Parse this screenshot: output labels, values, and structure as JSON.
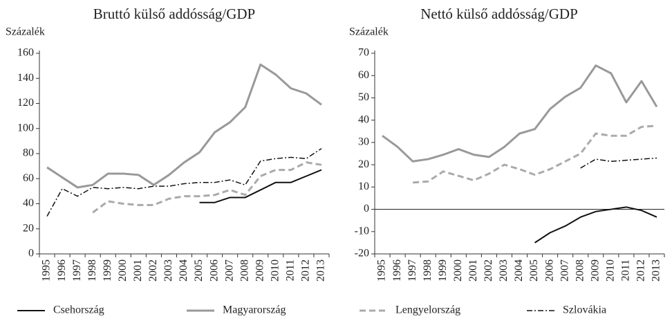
{
  "chart_data": [
    {
      "type": "line",
      "title": "Bruttó külső addósság/GDP",
      "y_label": "Százalék",
      "categories": [
        "1995",
        "1996",
        "1997",
        "1998",
        "1999",
        "2000",
        "2001",
        "2002",
        "2003",
        "2004",
        "2005",
        "2006",
        "2007",
        "2008",
        "2009",
        "2010",
        "2011",
        "2012",
        "2013"
      ],
      "ylim": [
        0,
        160
      ],
      "yticks": [
        0,
        20,
        40,
        60,
        80,
        100,
        120,
        140,
        160
      ],
      "series": [
        {
          "name": "Csehország",
          "color": "#111111",
          "width": 2,
          "dash": "solid",
          "values": [
            null,
            null,
            null,
            null,
            null,
            null,
            null,
            null,
            null,
            null,
            41,
            41,
            45,
            45,
            51,
            57,
            57,
            62,
            67
          ]
        },
        {
          "name": "Magyarország",
          "color": "#999999",
          "width": 3,
          "dash": "solid",
          "values": [
            69,
            61,
            53,
            55,
            64,
            64,
            63,
            55,
            63,
            73,
            81,
            97,
            105,
            117,
            151,
            143,
            132,
            128,
            119
          ]
        },
        {
          "name": "Lengyelország",
          "color": "#aaaaaa",
          "width": 3,
          "dash": "dashed",
          "values": [
            null,
            null,
            null,
            33,
            42,
            40,
            39,
            39,
            44,
            46,
            46,
            47,
            51,
            47,
            62,
            67,
            67,
            73,
            71
          ]
        },
        {
          "name": "Szlovákia",
          "color": "#111111",
          "width": 1.5,
          "dash": "dashdot",
          "values": [
            30,
            52,
            46,
            53,
            52,
            53,
            52,
            54,
            54,
            56,
            57,
            57,
            59,
            55,
            74,
            76,
            77,
            76,
            84
          ]
        }
      ]
    },
    {
      "type": "line",
      "title": "Nettó külső addósság/GDP",
      "y_label": "Százalék",
      "categories": [
        "1995",
        "1996",
        "1997",
        "1998",
        "1999",
        "2000",
        "2001",
        "2002",
        "2003",
        "2004",
        "2005",
        "2006",
        "2007",
        "2008",
        "2009",
        "2010",
        "2011",
        "2012",
        "2013"
      ],
      "ylim": [
        -20,
        70
      ],
      "yticks": [
        -20,
        -10,
        0,
        10,
        20,
        30,
        40,
        50,
        60,
        70
      ],
      "zero_line": true,
      "series": [
        {
          "color": "#111111",
          "width": 2,
          "dash": "solid",
          "values": [
            null,
            null,
            null,
            null,
            null,
            null,
            null,
            null,
            null,
            null,
            -15,
            -10.5,
            -7.5,
            -3.5,
            -1,
            0,
            1,
            -0.5,
            -3.5
          ]
        },
        {
          "color": "#999999",
          "width": 3,
          "dash": "solid",
          "values": [
            33,
            28,
            21.5,
            22.5,
            24.5,
            27,
            24.5,
            23.5,
            28,
            34,
            36,
            45,
            50.5,
            54.5,
            64.5,
            61,
            48,
            57.5,
            46
          ]
        },
        {
          "color": "#aaaaaa",
          "width": 3,
          "dash": "dashed",
          "values": [
            null,
            null,
            12,
            12.5,
            17,
            15,
            13,
            16,
            20,
            18,
            15.5,
            18,
            21.5,
            25,
            34,
            33,
            33,
            37,
            37.5
          ]
        },
        {
          "color": "#111111",
          "width": 1.5,
          "dash": "dashdot",
          "values": [
            null,
            null,
            null,
            null,
            null,
            null,
            null,
            null,
            null,
            null,
            null,
            null,
            null,
            18.5,
            22.5,
            21.5,
            22,
            22.5,
            23
          ]
        }
      ]
    }
  ]
}
